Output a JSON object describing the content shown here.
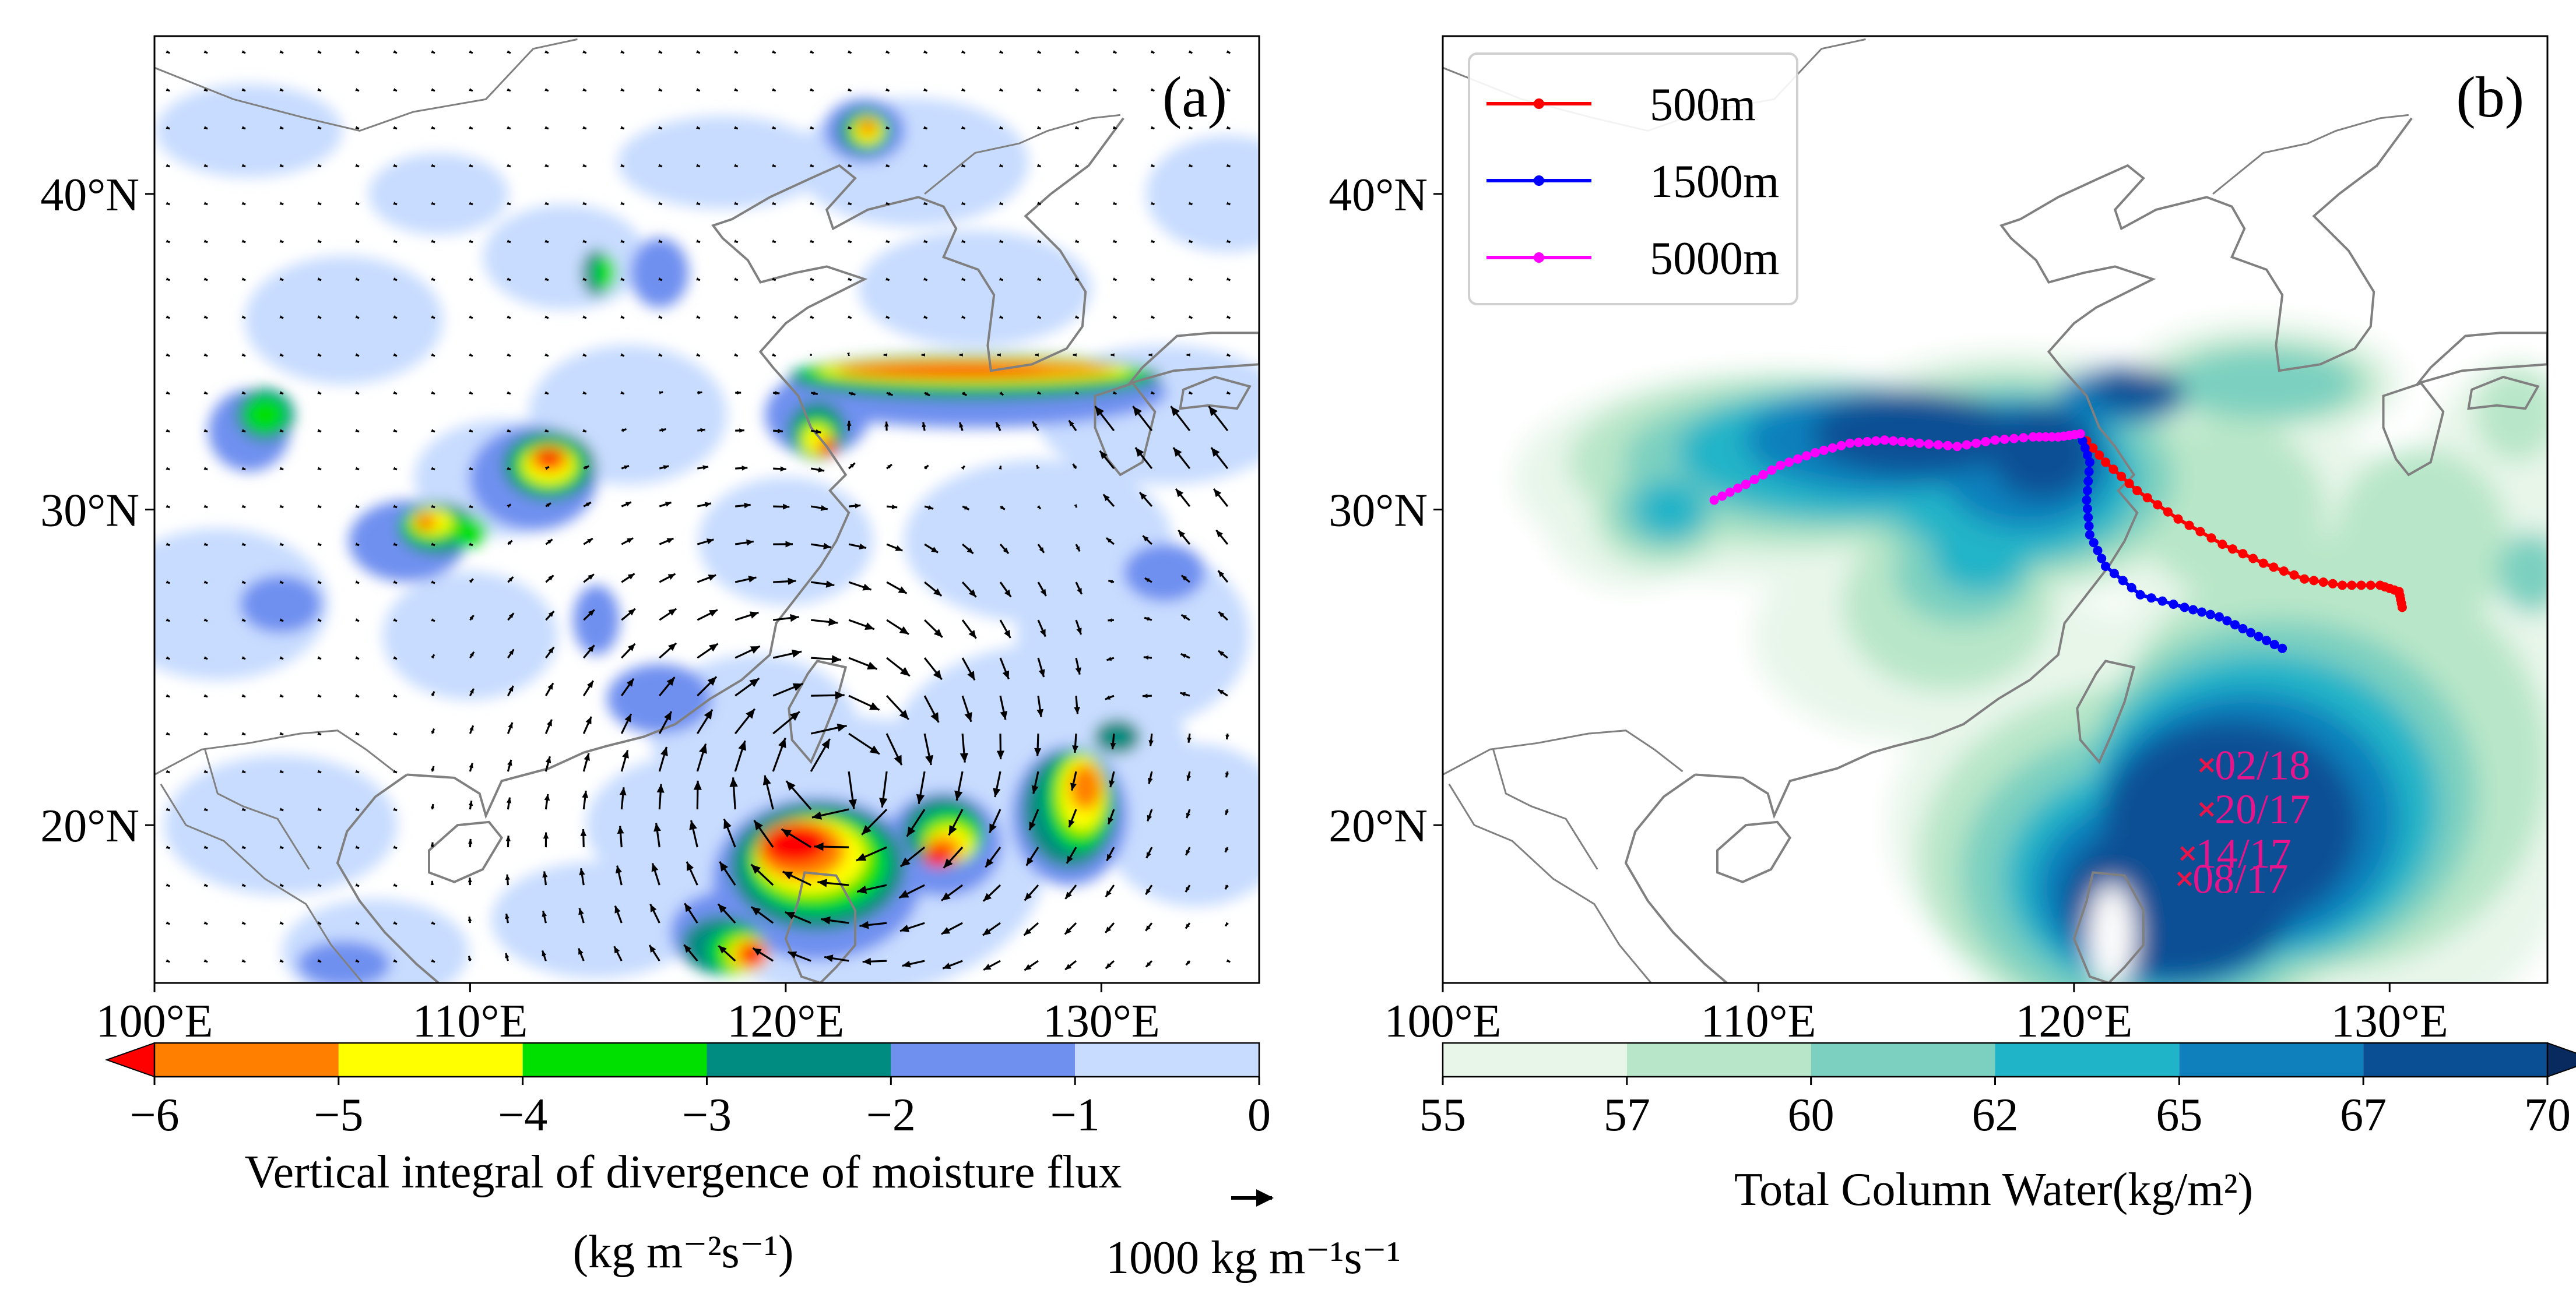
{
  "figure": {
    "panel_a": {
      "tag": "(a)",
      "lat_ticks": [
        "40°N",
        "30°N",
        "20°N"
      ],
      "lon_ticks": [
        "100°E",
        "110°E",
        "120°E",
        "130°E"
      ],
      "colorbar": {
        "ticks": [
          "−6",
          "−5",
          "−4",
          "−3",
          "−2",
          "−1",
          "0"
        ],
        "colors": [
          "#ff0000",
          "#ff7f00",
          "#ffff00",
          "#00e000",
          "#008c80",
          "#7090f0",
          "#c8dcff"
        ],
        "label": "Vertical integral of divergence of moisture flux",
        "units": "(kg m⁻²s⁻¹)"
      },
      "reference_vector_label": "1000 kg m⁻¹s⁻¹",
      "typhoon_circulation_center": {
        "lon": 121.5,
        "lat": 21.5
      }
    },
    "panel_b": {
      "tag": "(b)",
      "lat_ticks": [
        "40°N",
        "30°N",
        "20°N"
      ],
      "lon_ticks": [
        "100°E",
        "110°E",
        "120°E",
        "130°E"
      ],
      "colorbar": {
        "ticks": [
          "55",
          "57",
          "60",
          "62",
          "65",
          "67",
          "70"
        ],
        "colors": [
          "#e8f6ea",
          "#b8e6c8",
          "#7cd0c0",
          "#20b4c8",
          "#1080bc",
          "#0a4f94"
        ],
        "label": "Total Column Water(kg/m²)"
      },
      "legend": [
        {
          "label": "500m",
          "color": "#ff0000"
        },
        {
          "label": "1500m",
          "color": "#0000ff"
        },
        {
          "label": "5000m",
          "color": "#ff00ff"
        }
      ],
      "trajectories": [
        {
          "name": "500m",
          "color": "#ff0000",
          "points": [
            [
              120.2,
              32.4
            ],
            [
              121.0,
              31.5
            ],
            [
              122.0,
              30.6
            ],
            [
              123.3,
              29.7
            ],
            [
              124.7,
              28.9
            ],
            [
              126.0,
              28.3
            ],
            [
              127.3,
              27.8
            ],
            [
              128.5,
              27.6
            ],
            [
              129.7,
              27.6
            ],
            [
              130.3,
              27.4
            ],
            [
              130.4,
              26.9
            ]
          ]
        },
        {
          "name": "1500m",
          "color": "#0000ff",
          "points": [
            [
              120.2,
              32.4
            ],
            [
              120.5,
              31.5
            ],
            [
              120.4,
              30.3
            ],
            [
              120.5,
              29.2
            ],
            [
              121.0,
              28.2
            ],
            [
              122.1,
              27.3
            ],
            [
              123.5,
              26.9
            ],
            [
              124.6,
              26.6
            ],
            [
              125.6,
              26.1
            ],
            [
              126.6,
              25.6
            ]
          ]
        },
        {
          "name": "5000m",
          "color": "#ff00ff",
          "points": [
            [
              108.6,
              30.3
            ],
            [
              109.6,
              30.8
            ],
            [
              110.7,
              31.4
            ],
            [
              111.8,
              31.8
            ],
            [
              112.9,
              32.1
            ],
            [
              114.0,
              32.2
            ],
            [
              115.1,
              32.1
            ],
            [
              116.3,
              32.0
            ],
            [
              117.5,
              32.2
            ],
            [
              118.7,
              32.3
            ],
            [
              119.5,
              32.3
            ],
            [
              120.2,
              32.4
            ]
          ]
        }
      ],
      "typhoon_track": [
        {
          "label": "08/17",
          "lon": 123.5,
          "lat": 18.3
        },
        {
          "label": "14/17",
          "lon": 123.6,
          "lat": 19.1
        },
        {
          "label": "20/17",
          "lon": 124.2,
          "lat": 20.5
        },
        {
          "label": "02/18",
          "lon": 124.2,
          "lat": 21.9
        }
      ]
    }
  }
}
